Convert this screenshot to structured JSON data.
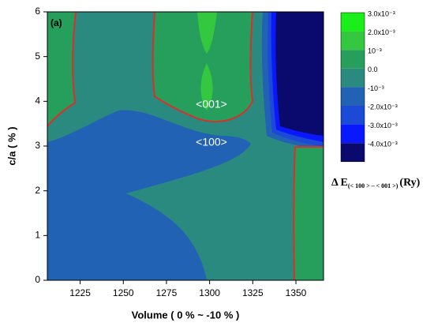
{
  "chart_data": {
    "type": "contour",
    "panel_label": "(a)",
    "xlabel": "Volume ( 0 % ~ -10 % )",
    "ylabel": "c/a ( % )",
    "xlim": [
      1206,
      1366
    ],
    "xticks": [
      1225,
      1250,
      1275,
      1300,
      1325,
      1350
    ],
    "ylim": [
      0,
      6
    ],
    "yticks": [
      0,
      1,
      2,
      3,
      4,
      5,
      6
    ],
    "annotations": [
      "<001>",
      "<100>"
    ],
    "colorbar": {
      "label": "Δ E",
      "label_subscript": "(< 100 > – < 001 >)",
      "label_unit": "(Ry)",
      "ticks": [
        {
          "value": 0.003,
          "label": "3.0x10⁻³"
        },
        {
          "value": 0.002,
          "label": "2.0x10⁻³"
        },
        {
          "value": 0.001,
          "label": "10⁻³"
        },
        {
          "value": 0,
          "label": "0.0"
        },
        {
          "value": -0.001,
          "label": "-10⁻³"
        },
        {
          "value": -0.002,
          "label": "-2.0x10⁻³"
        },
        {
          "value": -0.003,
          "label": "-3.0x10⁻³"
        },
        {
          "value": -0.004,
          "label": "-4.0x10⁻³"
        }
      ],
      "colors": [
        "#1aef1a",
        "#33c83f",
        "#279f5c",
        "#2a8a80",
        "#2262b4",
        "#1b4bd6",
        "#0a18ff",
        "#0a0a6e"
      ]
    },
    "contour_color": "#d8302a"
  }
}
